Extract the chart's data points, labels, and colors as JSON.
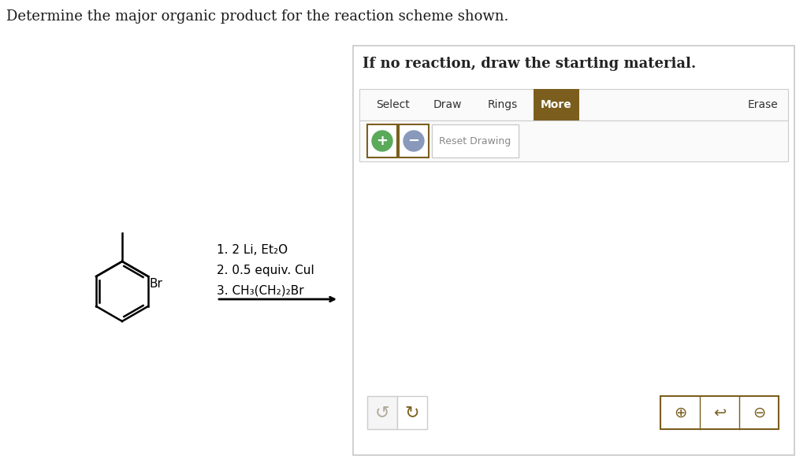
{
  "bg_color": "#ffffff",
  "title_text": "Determine the major organic product for the reaction scheme shown.",
  "title_fontsize": 13,
  "title_color": "#1a1a1a",
  "panel_border_color": "#c8c8c8",
  "panel_bg": "#ffffff",
  "instruction_text": "If no reaction, draw the starting material.",
  "instruction_fontsize": 13,
  "toolbar_items": [
    "Select",
    "Draw",
    "Rings",
    "More",
    "Erase"
  ],
  "toolbar_active": "More",
  "toolbar_active_bg": "#7b5e1e",
  "toolbar_active_color": "#ffffff",
  "toolbar_inactive_color": "#333333",
  "toolbar_fontsize": 10,
  "reaction_label_lines": [
    "1. 2 Li, Et₂O",
    "2. 0.5 equiv. CuI",
    "3. CH₃(CH₂)₂Br"
  ],
  "reaction_label_fontsize": 11,
  "zoom_button_color": "#7b5e1e",
  "button_border_color": "#c8c8c8",
  "undo_icon_color": "#b0a898",
  "redo_icon_color": "#7b5e1e"
}
